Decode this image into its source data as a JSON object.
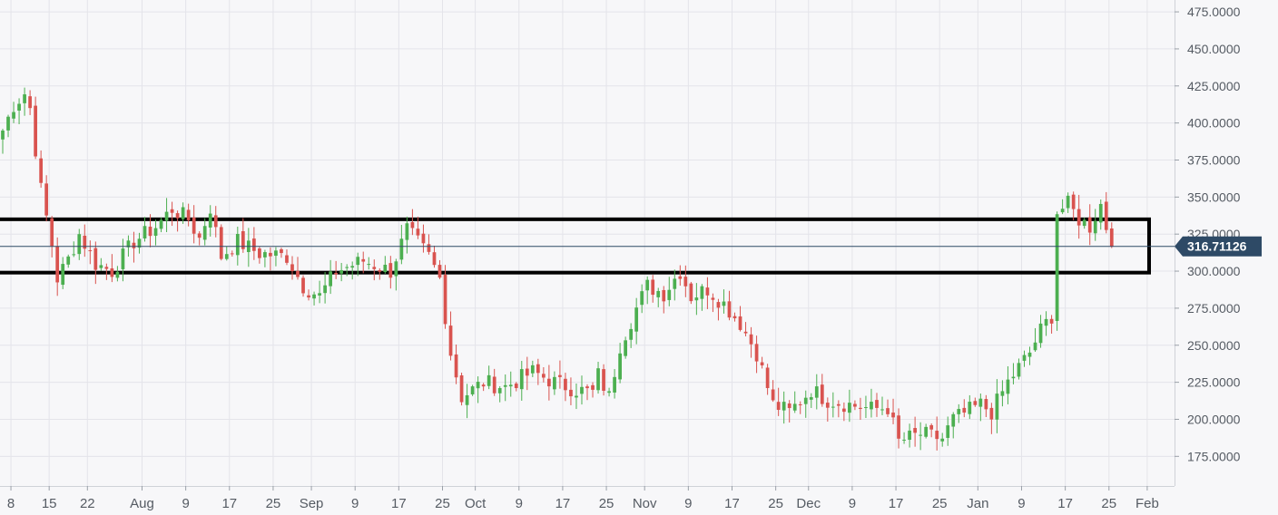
{
  "chart_data": {
    "type": "candlestick",
    "title": "",
    "xlabel": "",
    "ylabel": "",
    "ylim": [
      155,
      483
    ],
    "y_ticks": [
      "475.0000",
      "450.0000",
      "425.0000",
      "400.0000",
      "375.0000",
      "350.0000",
      "325.0000",
      "300.0000",
      "275.0000",
      "250.0000",
      "225.0000",
      "200.0000",
      "175.0000"
    ],
    "x_ticks": [
      {
        "label": "8",
        "date": "2020-07-08"
      },
      {
        "label": "15",
        "date": "2020-07-15"
      },
      {
        "label": "22",
        "date": "2020-07-22"
      },
      {
        "label": "Aug",
        "date": "2020-08-01"
      },
      {
        "label": "9",
        "date": "2020-08-09"
      },
      {
        "label": "17",
        "date": "2020-08-17"
      },
      {
        "label": "25",
        "date": "2020-08-25"
      },
      {
        "label": "Sep",
        "date": "2020-09-01"
      },
      {
        "label": "9",
        "date": "2020-09-09"
      },
      {
        "label": "17",
        "date": "2020-09-17"
      },
      {
        "label": "25",
        "date": "2020-09-25"
      },
      {
        "label": "Oct",
        "date": "2020-10-01"
      },
      {
        "label": "9",
        "date": "2020-10-09"
      },
      {
        "label": "17",
        "date": "2020-10-17"
      },
      {
        "label": "25",
        "date": "2020-10-25"
      },
      {
        "label": "Nov",
        "date": "2020-11-01"
      },
      {
        "label": "9",
        "date": "2020-11-09"
      },
      {
        "label": "17",
        "date": "2020-11-17"
      },
      {
        "label": "25",
        "date": "2020-11-25"
      },
      {
        "label": "Dec",
        "date": "2020-12-01"
      },
      {
        "label": "9",
        "date": "2020-12-09"
      },
      {
        "label": "17",
        "date": "2020-12-17"
      },
      {
        "label": "25",
        "date": "2020-12-25"
      },
      {
        "label": "Jan",
        "date": "2021-01-01"
      },
      {
        "label": "9",
        "date": "2021-01-09"
      },
      {
        "label": "17",
        "date": "2021-01-17"
      },
      {
        "label": "25",
        "date": "2021-01-25"
      },
      {
        "label": "Feb",
        "date": "2021-02-01"
      }
    ],
    "x_start": "2020-07-06",
    "x_end": "2021-02-06",
    "current_price": 316.71126,
    "current_price_label": "316.71126",
    "highlight_zone": {
      "y_low": 299,
      "y_high": 335
    },
    "grid": true,
    "legend": "none",
    "colors": {
      "up": "#4caf50",
      "down": "#d9534f",
      "price_line": "#2e4a66",
      "price_label_bg": "#2e4a66",
      "zone_border": "#000000"
    },
    "price_waypoints": [
      [
        "2020-07-06",
        395
      ],
      [
        "2020-07-08",
        412
      ],
      [
        "2020-07-10",
        420
      ],
      [
        "2020-07-11",
        410
      ],
      [
        "2020-07-13",
        355
      ],
      [
        "2020-07-15",
        318
      ],
      [
        "2020-07-16",
        295
      ],
      [
        "2020-07-18",
        308
      ],
      [
        "2020-07-20",
        325
      ],
      [
        "2020-07-23",
        305
      ],
      [
        "2020-07-26",
        300
      ],
      [
        "2020-07-30",
        320
      ],
      [
        "2020-08-03",
        330
      ],
      [
        "2020-08-06",
        342
      ],
      [
        "2020-08-09",
        335
      ],
      [
        "2020-08-11",
        322
      ],
      [
        "2020-08-13",
        343
      ],
      [
        "2020-08-15",
        310
      ],
      [
        "2020-08-18",
        320
      ],
      [
        "2020-08-22",
        312
      ],
      [
        "2020-08-27",
        310
      ],
      [
        "2020-08-30",
        290
      ],
      [
        "2020-09-02",
        283
      ],
      [
        "2020-09-05",
        300
      ],
      [
        "2020-09-10",
        307
      ],
      [
        "2020-09-15",
        300
      ],
      [
        "2020-09-18",
        328
      ],
      [
        "2020-09-22",
        310
      ],
      [
        "2020-09-24",
        295
      ],
      [
        "2020-09-26",
        245
      ],
      [
        "2020-09-28",
        215
      ],
      [
        "2020-10-02",
        225
      ],
      [
        "2020-10-06",
        222
      ],
      [
        "2020-10-11",
        232
      ],
      [
        "2020-10-15",
        225
      ],
      [
        "2020-10-19",
        220
      ],
      [
        "2020-10-22",
        218
      ],
      [
        "2020-10-23",
        230
      ],
      [
        "2020-10-25",
        215
      ],
      [
        "2020-10-27",
        250
      ],
      [
        "2020-10-30",
        275
      ],
      [
        "2020-11-01",
        290
      ],
      [
        "2020-11-04",
        285
      ],
      [
        "2020-11-07",
        300
      ],
      [
        "2020-11-09",
        283
      ],
      [
        "2020-11-12",
        288
      ],
      [
        "2020-11-15",
        278
      ],
      [
        "2020-11-18",
        265
      ],
      [
        "2020-11-21",
        245
      ],
      [
        "2020-11-24",
        210
      ],
      [
        "2020-11-27",
        205
      ],
      [
        "2020-12-01",
        220
      ],
      [
        "2020-12-04",
        213
      ],
      [
        "2020-12-08",
        210
      ],
      [
        "2020-12-12",
        207
      ],
      [
        "2020-12-15",
        208
      ],
      [
        "2020-12-17",
        185
      ],
      [
        "2020-12-21",
        190
      ],
      [
        "2020-12-25",
        187
      ],
      [
        "2020-12-27",
        200
      ],
      [
        "2021-01-01",
        210
      ],
      [
        "2021-01-03",
        205
      ],
      [
        "2021-01-06",
        225
      ],
      [
        "2021-01-10",
        245
      ],
      [
        "2021-01-12",
        260
      ],
      [
        "2021-01-14",
        270
      ],
      [
        "2021-01-15",
        340
      ],
      [
        "2021-01-17",
        345
      ],
      [
        "2021-01-19",
        335
      ],
      [
        "2021-01-21",
        330
      ],
      [
        "2021-01-23",
        345
      ],
      [
        "2021-01-24",
        330
      ],
      [
        "2021-01-25",
        316.7
      ]
    ]
  }
}
